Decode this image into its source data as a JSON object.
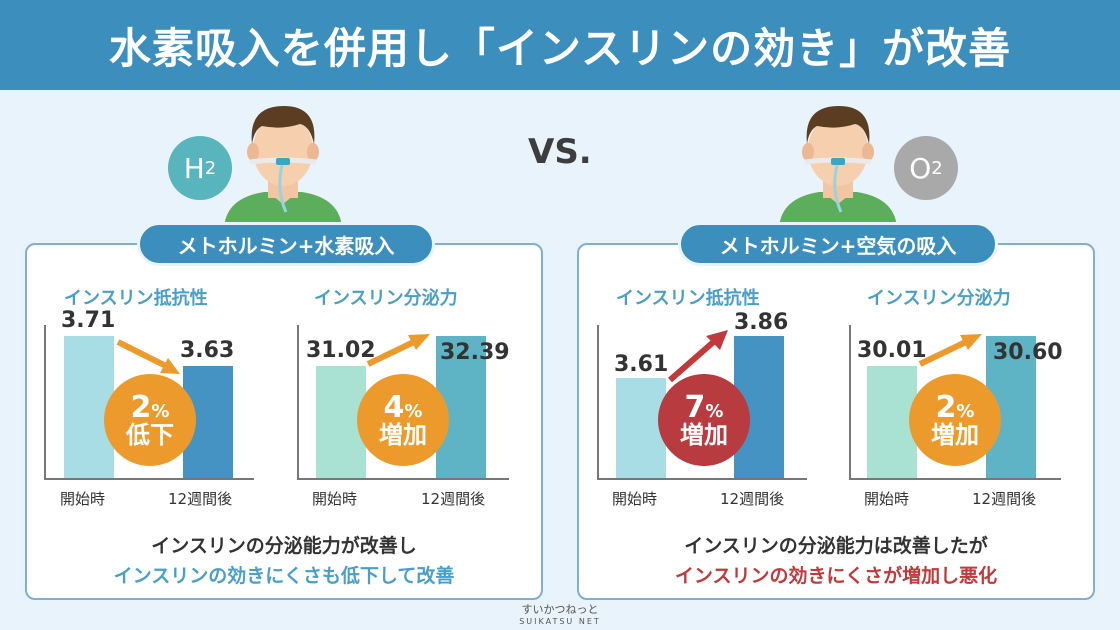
{
  "header": {
    "title": "水素吸入を併用し「インスリンの効き」が改善"
  },
  "vs_label": "VS.",
  "left": {
    "molecule": "H",
    "molecule_sub": "2",
    "pill": "メトホルミン+水素吸入",
    "charts": [
      {
        "title": "インスリン抵抗性",
        "start_value": "3.71",
        "end_value": "3.63",
        "change_pct": "2",
        "change_unit": "%",
        "change_word": "低下"
      },
      {
        "title": "インスリン分泌力",
        "start_value": "31.02",
        "end_value": "32.39",
        "change_pct": "4",
        "change_unit": "%",
        "change_word": "増加"
      }
    ],
    "summary_line1": "インスリンの分泌能力が改善し",
    "summary_line2": "インスリンの効きにくさも低下して改善"
  },
  "right": {
    "molecule": "O",
    "molecule_sub": "2",
    "pill": "メトホルミン+空気の吸入",
    "charts": [
      {
        "title": "インスリン抵抗性",
        "start_value": "3.61",
        "end_value": "3.86",
        "change_pct": "7",
        "change_unit": "%",
        "change_word": "増加"
      },
      {
        "title": "インスリン分泌力",
        "start_value": "30.01",
        "end_value": "30.60",
        "change_pct": "2",
        "change_unit": "%",
        "change_word": "増加"
      }
    ],
    "summary_line1": "インスリンの分泌能力は改善したが",
    "summary_line2": "インスリンの効きにくさが増加し悪化"
  },
  "x_labels": {
    "start": "開始時",
    "end": "12週間後"
  },
  "colors": {
    "header": "#3c8fbd",
    "blue_text": "#4a9fc6",
    "red_text": "#c0393b",
    "orange": "#ec9a2c",
    "red_circle": "#b73b3f",
    "light_blue_bar": "#a8dde6",
    "dark_blue_bar": "#4493c3",
    "mint_bar": "#a9e2d3",
    "teal_bar": "#5eb4c5",
    "h2_badge": "#58b4bd",
    "o2_badge": "#a9a9a9"
  },
  "footer": {
    "brand": "すいかつねっと",
    "brand_en": "SUIKATSU NET"
  }
}
